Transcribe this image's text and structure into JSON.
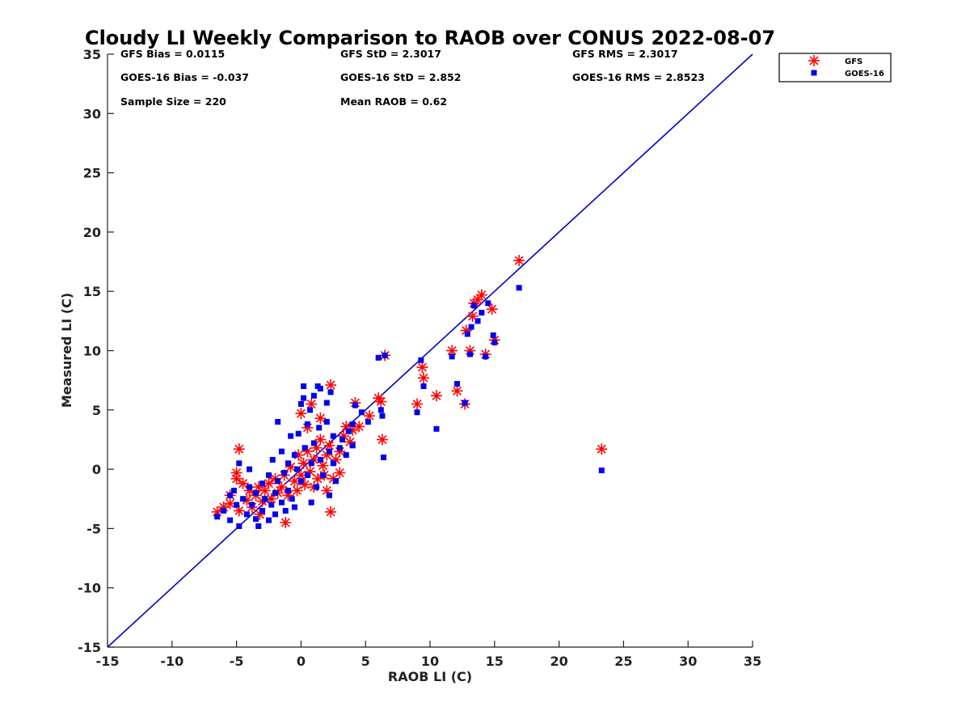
{
  "chart_data": {
    "type": "scatter",
    "title": "Cloudy LI Weekly Comparison to RAOB over CONUS 2022-08-07",
    "xlabel": "RAOB LI (C)",
    "ylabel": "Measured LI (C)",
    "xlim": [
      -15,
      35
    ],
    "ylim": [
      -15,
      35
    ],
    "xticks": [
      "-15",
      "-10",
      "-5",
      "0",
      "5",
      "10",
      "15",
      "20",
      "25",
      "30",
      "35"
    ],
    "yticks": [
      "-15",
      "-10",
      "-5",
      "0",
      "5",
      "10",
      "15",
      "20",
      "25",
      "30",
      "35"
    ],
    "legend_position": "outside-top-right",
    "grid": false,
    "stats": [
      [
        "GFS Bias = 0.0115",
        "GFS StD = 2.3017",
        "GFS RMS = 2.3017"
      ],
      [
        "GOES-16 Bias = -0.037",
        "GOES-16 StD = 2.852",
        "GOES-16 RMS = 2.8523"
      ],
      [
        "Sample Size = 220",
        "Mean RAOB = 0.62",
        ""
      ]
    ],
    "reference_line": {
      "x": [
        -15,
        35
      ],
      "y": [
        -15,
        35
      ],
      "color": "#0000cc"
    },
    "series": [
      {
        "name": "GFS",
        "marker": "asterisk",
        "color": "#ff0000",
        "points": [
          [
            -6.5,
            -3.6
          ],
          [
            -6,
            -3.2
          ],
          [
            -5.5,
            -2.9
          ],
          [
            -5.5,
            -2.2
          ],
          [
            -5,
            -0.3
          ],
          [
            -5,
            -0.8
          ],
          [
            -4.8,
            1.7
          ],
          [
            -4.8,
            -3.5
          ],
          [
            -4.5,
            -1.2
          ],
          [
            -4.2,
            -2.6
          ],
          [
            -4,
            -1.8
          ],
          [
            -3.8,
            -3.2
          ],
          [
            -3.5,
            -2.2
          ],
          [
            -3.3,
            -1.5
          ],
          [
            -3.2,
            -3.8
          ],
          [
            -3,
            -2.7
          ],
          [
            -2.8,
            -1.8
          ],
          [
            -2.5,
            -1.2
          ],
          [
            -2.3,
            -2.5
          ],
          [
            -2,
            -0.8
          ],
          [
            -1.8,
            -2
          ],
          [
            -1.5,
            -1.5
          ],
          [
            -1.3,
            -0.5
          ],
          [
            -1.2,
            -4.5
          ],
          [
            -1,
            -2.2
          ],
          [
            -0.8,
            0.2
          ],
          [
            -0.5,
            -1
          ],
          [
            -0.3,
            -1.8
          ],
          [
            -0.2,
            1.2
          ],
          [
            0,
            -0.5
          ],
          [
            0,
            4.7
          ],
          [
            0.2,
            0.5
          ],
          [
            0.3,
            -1.3
          ],
          [
            0.5,
            1.5
          ],
          [
            0.5,
            3.5
          ],
          [
            0.7,
            -0.2
          ],
          [
            0.8,
            5.5
          ],
          [
            1,
            0.8
          ],
          [
            1,
            -1.5
          ],
          [
            1.2,
            1.8
          ],
          [
            1.3,
            -0.8
          ],
          [
            1.5,
            2.5
          ],
          [
            1.5,
            4.3
          ],
          [
            1.7,
            0.3
          ],
          [
            1.8,
            -0.5
          ],
          [
            2,
            1.2
          ],
          [
            2,
            -1.8
          ],
          [
            2.2,
            2
          ],
          [
            2.3,
            7.1
          ],
          [
            2.3,
            -3.6
          ],
          [
            2.5,
            -0.8
          ],
          [
            2.7,
            0.8
          ],
          [
            3,
            1.5
          ],
          [
            3,
            -0.3
          ],
          [
            3.3,
            2.8
          ],
          [
            3.5,
            3.6
          ],
          [
            3.8,
            2.3
          ],
          [
            4,
            3.3
          ],
          [
            4.2,
            5.6
          ],
          [
            4.5,
            3.6
          ],
          [
            5.3,
            4.5
          ],
          [
            6,
            6
          ],
          [
            6.2,
            5.7
          ],
          [
            6.3,
            2.5
          ],
          [
            6.5,
            9.6
          ],
          [
            9,
            5.5
          ],
          [
            9.4,
            8.6
          ],
          [
            9.5,
            7.7
          ],
          [
            10.5,
            6.2
          ],
          [
            11.7,
            10
          ],
          [
            12.1,
            6.6
          ],
          [
            12.7,
            5.5
          ],
          [
            12.8,
            11.7
          ],
          [
            13.1,
            10
          ],
          [
            13.3,
            12.9
          ],
          [
            13.4,
            14
          ],
          [
            13.7,
            14.3
          ],
          [
            14,
            14.7
          ],
          [
            14.3,
            9.7
          ],
          [
            14.8,
            13.5
          ],
          [
            15,
            10.9
          ],
          [
            16.9,
            17.6
          ],
          [
            23.3,
            1.7
          ]
        ]
      },
      {
        "name": "GOES-16",
        "marker": "square",
        "color": "#0000ee",
        "points": [
          [
            -6.5,
            -4
          ],
          [
            -6,
            -3.5
          ],
          [
            -5.5,
            -4.3
          ],
          [
            -5.5,
            -2.2
          ],
          [
            -5.2,
            -1.8
          ],
          [
            -5,
            -3
          ],
          [
            -4.8,
            0.5
          ],
          [
            -4.8,
            -4.8
          ],
          [
            -4.5,
            -2.5
          ],
          [
            -4.2,
            -3.8
          ],
          [
            -4,
            -1.5
          ],
          [
            -4,
            0
          ],
          [
            -3.8,
            -3
          ],
          [
            -3.5,
            -4.2
          ],
          [
            -3.5,
            -2
          ],
          [
            -3.3,
            -4.8
          ],
          [
            -3,
            -3.5
          ],
          [
            -3,
            -1.2
          ],
          [
            -2.8,
            -2.5
          ],
          [
            -2.5,
            -4.3
          ],
          [
            -2.5,
            -0.5
          ],
          [
            -2.3,
            -3
          ],
          [
            -2.2,
            0.8
          ],
          [
            -2,
            -2
          ],
          [
            -2,
            -3.8
          ],
          [
            -1.8,
            4
          ],
          [
            -1.8,
            -1
          ],
          [
            -1.5,
            1.5
          ],
          [
            -1.5,
            -2.8
          ],
          [
            -1.3,
            -0.3
          ],
          [
            -1.2,
            -3.5
          ],
          [
            -1,
            0.5
          ],
          [
            -1,
            -1.8
          ],
          [
            -0.8,
            2.8
          ],
          [
            -0.7,
            -2.5
          ],
          [
            -0.5,
            1.2
          ],
          [
            -0.5,
            -3.2
          ],
          [
            -0.3,
            0
          ],
          [
            -0.2,
            3
          ],
          [
            0,
            -1
          ],
          [
            0,
            5.5
          ],
          [
            0.2,
            6
          ],
          [
            0.2,
            7
          ],
          [
            0.3,
            1.8
          ],
          [
            0.5,
            -0.5
          ],
          [
            0.5,
            3.8
          ],
          [
            0.7,
            5
          ],
          [
            0.8,
            0.5
          ],
          [
            0.8,
            -2.8
          ],
          [
            1,
            6.2
          ],
          [
            1,
            2.2
          ],
          [
            1.2,
            -1.5
          ],
          [
            1.3,
            7
          ],
          [
            1.4,
            3.5
          ],
          [
            1.5,
            0.8
          ],
          [
            1.5,
            6.8
          ],
          [
            1.7,
            -0.5
          ],
          [
            2,
            4
          ],
          [
            2,
            5.6
          ],
          [
            2.2,
            1.5
          ],
          [
            2.2,
            -2.2
          ],
          [
            2.3,
            6.5
          ],
          [
            2.5,
            0.5
          ],
          [
            2.5,
            2.8
          ],
          [
            2.7,
            -1
          ],
          [
            3,
            1.8
          ],
          [
            3.2,
            2.5
          ],
          [
            3.5,
            1.2
          ],
          [
            3.7,
            3.2
          ],
          [
            4,
            2
          ],
          [
            4,
            3.8
          ],
          [
            4.2,
            5.4
          ],
          [
            4.7,
            4.8
          ],
          [
            5.2,
            4
          ],
          [
            6,
            9.4
          ],
          [
            6.2,
            5
          ],
          [
            6.3,
            4.5
          ],
          [
            6.4,
            1
          ],
          [
            6.5,
            9.6
          ],
          [
            9,
            4.8
          ],
          [
            9.3,
            9.2
          ],
          [
            9.5,
            7
          ],
          [
            10.5,
            3.4
          ],
          [
            11.7,
            9.5
          ],
          [
            12.1,
            7.2
          ],
          [
            12.7,
            5.6
          ],
          [
            12.9,
            11.4
          ],
          [
            13.1,
            9.7
          ],
          [
            13.2,
            12
          ],
          [
            13.4,
            13.8
          ],
          [
            13.7,
            12.5
          ],
          [
            14,
            13.2
          ],
          [
            14.3,
            9.5
          ],
          [
            14.5,
            14
          ],
          [
            14.9,
            11.3
          ],
          [
            15,
            10.7
          ],
          [
            16.9,
            15.3
          ],
          [
            23.3,
            -0.1
          ]
        ]
      }
    ]
  }
}
